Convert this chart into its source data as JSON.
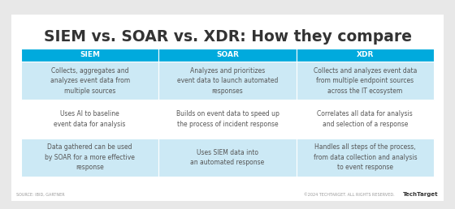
{
  "title": "SIEM vs. SOAR vs. XDR: How they compare",
  "title_fontsize": 13.5,
  "bg_color": "#e8e8e8",
  "card_color": "#ffffff",
  "header_color": "#00aadd",
  "header_text_color": "#ffffff",
  "row_colors": [
    "#cce9f5",
    "#ffffff",
    "#cce9f5"
  ],
  "col_headers": [
    "SIEM",
    "SOAR",
    "XDR"
  ],
  "col_header_fontsize": 6.5,
  "cell_fontsize": 5.5,
  "footer_left": "SOURCE: IBID, GARTNER",
  "footer_right": "©2024 TECHTARGET. ALL RIGHTS RESERVED.",
  "rows": [
    [
      "Collects, aggregates and\nanalyzes event data from\nmultiple sources",
      "Analyzes and prioritizes\nevent data to launch automated\nresponses",
      "Collects and analyzes event data\nfrom multiple endpoint sources\nacross the IT ecosystem"
    ],
    [
      "Uses AI to baseline\nevent data for analysis",
      "Builds on event data to speed up\nthe process of incident response",
      "Correlates all data for analysis\nand selection of a response"
    ],
    [
      "Data gathered can be used\nby SOAR for a more effective\nresponse",
      "Uses SIEM data into\nan automated response",
      "Handles all steps of the process,\nfrom data collection and analysis\nto event response"
    ]
  ]
}
